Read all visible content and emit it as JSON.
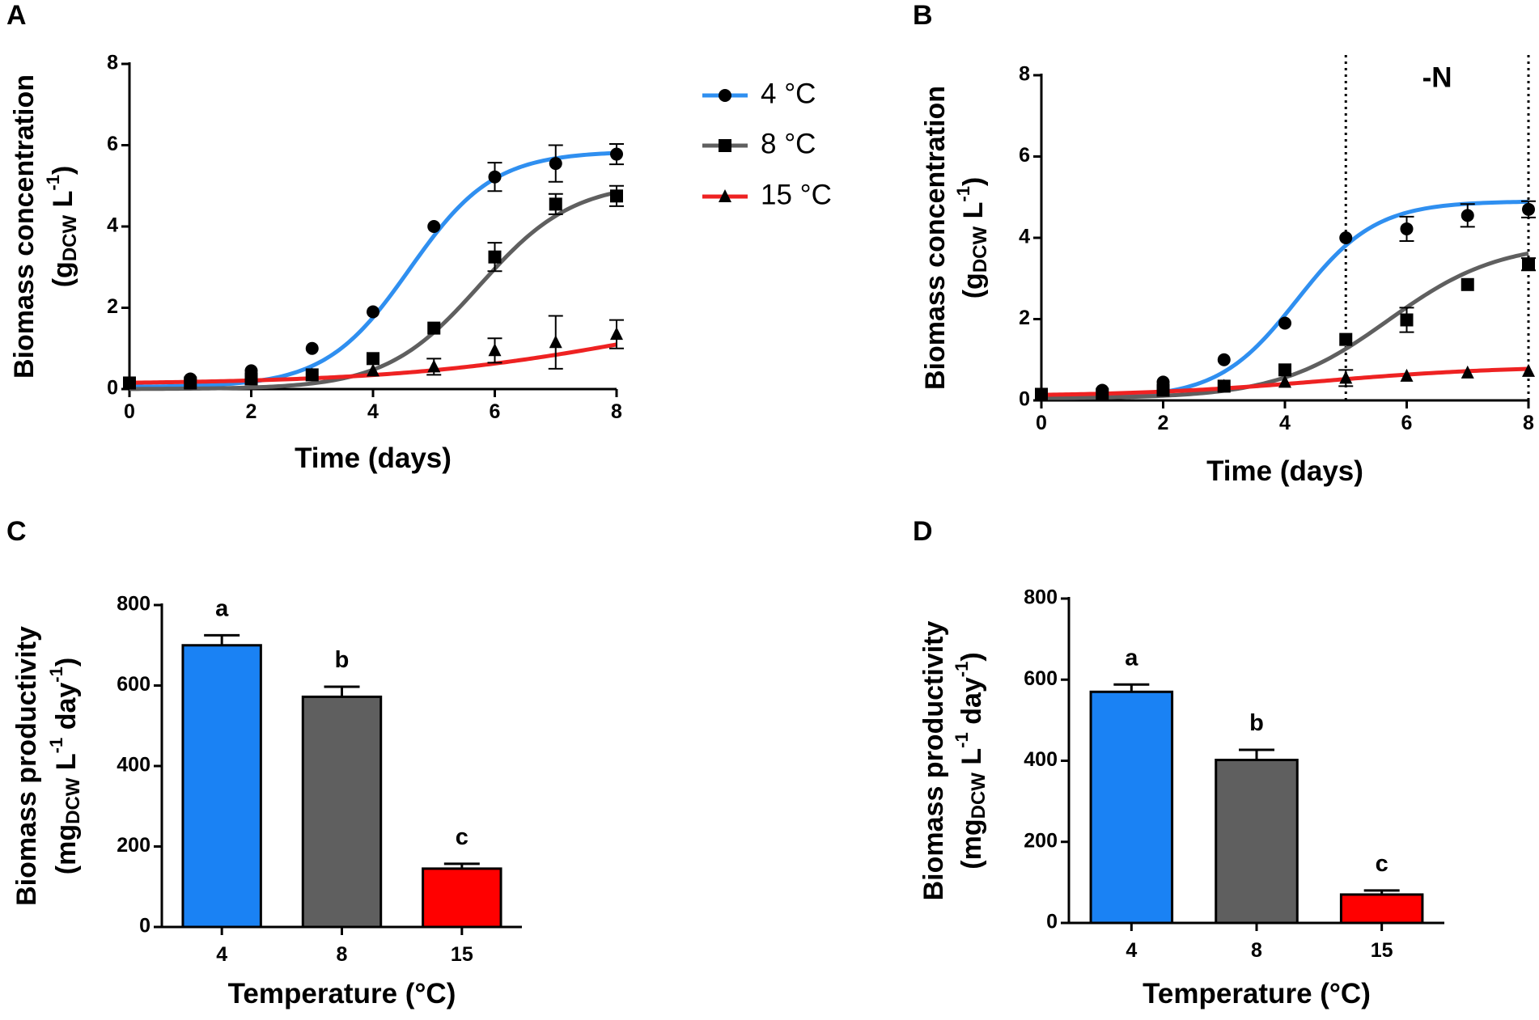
{
  "colors": {
    "4": "#1a82f4",
    "8": "#5f5f5f",
    "15": "#ff0000",
    "line4": "#2f8ff0",
    "line8": "#5f5f5f",
    "line15": "#ee2222",
    "axis": "#000000"
  },
  "legend": {
    "items": [
      {
        "label": "4 °C",
        "marker": "circle",
        "color_key": "line4"
      },
      {
        "label": "8 °C",
        "marker": "square",
        "color_key": "line8"
      },
      {
        "label": "15 °C",
        "marker": "triangle",
        "color_key": "line15"
      }
    ]
  },
  "chart_data": [
    {
      "id": "A",
      "panel_label": "A",
      "type": "scatter",
      "xlabel": "Time (days)",
      "ylabel_line1": "Biomass concentration",
      "ylabel_line2_prefix": "(g",
      "ylabel_sub": "DCW",
      "ylabel_mid": " L",
      "ylabel_sup": "-1",
      "ylabel_suffix": ")",
      "xlim": [
        0,
        8
      ],
      "ylim": [
        0,
        8
      ],
      "xticks": [
        0,
        2,
        4,
        6,
        8
      ],
      "yticks": [
        0,
        2,
        4,
        6,
        8
      ],
      "vlines": [],
      "annotation": null,
      "series": [
        {
          "name": "4 °C",
          "marker": "circle",
          "color_key": "line4",
          "x": [
            0,
            1,
            2,
            3,
            4,
            5,
            6,
            7,
            8
          ],
          "y": [
            0.15,
            0.25,
            0.45,
            1.0,
            1.9,
            4.0,
            5.22,
            5.55,
            5.78
          ],
          "err": [
            0,
            0,
            0,
            0,
            0,
            0,
            0.35,
            0.45,
            0.25
          ],
          "fit": {
            "min": 0.05,
            "max": 5.85,
            "x0": 4.6,
            "k": 1.45
          }
        },
        {
          "name": "8 °C",
          "marker": "square",
          "color_key": "line8",
          "x": [
            0,
            1,
            2,
            3,
            4,
            5,
            6,
            7,
            8
          ],
          "y": [
            0.15,
            0.15,
            0.25,
            0.35,
            0.75,
            1.5,
            3.25,
            4.55,
            4.75
          ],
          "err": [
            0,
            0,
            0,
            0,
            0,
            0,
            0.35,
            0.25,
            0.25
          ],
          "fit": {
            "min": 0.0,
            "max": 5.1,
            "x0": 5.75,
            "k": 1.3
          }
        },
        {
          "name": "15 °C",
          "marker": "triangle",
          "color_key": "line15",
          "x": [
            0,
            1,
            2,
            3,
            4,
            5,
            6,
            7,
            8
          ],
          "y": [
            0.15,
            0.15,
            0.25,
            0.35,
            0.45,
            0.55,
            0.95,
            1.15,
            1.35
          ],
          "err": [
            0,
            0,
            0,
            0,
            0,
            0.2,
            0.3,
            0.65,
            0.35
          ],
          "fit": {
            "min": 0.12,
            "max": 2.4,
            "x0": 8.6,
            "k": 0.48
          }
        }
      ]
    },
    {
      "id": "B",
      "panel_label": "B",
      "type": "scatter",
      "xlabel": "Time (days)",
      "ylabel_line1": "Biomass concentration",
      "ylabel_line2_prefix": "(g",
      "ylabel_sub": "DCW",
      "ylabel_mid": " L",
      "ylabel_sup": "-1",
      "ylabel_suffix": ")",
      "xlim": [
        0,
        8
      ],
      "ylim": [
        0,
        8
      ],
      "xticks": [
        0,
        2,
        4,
        6,
        8
      ],
      "yticks": [
        0,
        2,
        4,
        6,
        8
      ],
      "vlines": [
        5,
        8
      ],
      "annotation": {
        "text": "-N",
        "x": 6.5,
        "y": 7.9
      },
      "series": [
        {
          "name": "4 °C",
          "marker": "circle",
          "color_key": "line4",
          "x": [
            0,
            1,
            2,
            3,
            4,
            5,
            6,
            7,
            8
          ],
          "y": [
            0.15,
            0.25,
            0.45,
            1.0,
            1.9,
            4.0,
            4.22,
            4.55,
            4.7
          ],
          "err": [
            0,
            0,
            0,
            0,
            0,
            0,
            0.3,
            0.28,
            0.2
          ],
          "fit": {
            "min": 0.05,
            "max": 4.9,
            "x0": 4.2,
            "k": 1.55
          }
        },
        {
          "name": "8 °C",
          "marker": "square",
          "color_key": "line8",
          "x": [
            0,
            1,
            2,
            3,
            4,
            5,
            6,
            7,
            8
          ],
          "y": [
            0.15,
            0.15,
            0.25,
            0.35,
            0.75,
            1.5,
            1.98,
            2.85,
            3.35
          ],
          "err": [
            0,
            0,
            0,
            0,
            0,
            0,
            0.3,
            0,
            0.15
          ],
          "fit": {
            "min": 0.05,
            "max": 3.9,
            "x0": 5.7,
            "k": 1.1
          }
        },
        {
          "name": "15 °C",
          "marker": "triangle",
          "color_key": "line15",
          "x": [
            0,
            1,
            2,
            3,
            4,
            5,
            6,
            7,
            8
          ],
          "y": [
            0.15,
            0.15,
            0.25,
            0.35,
            0.45,
            0.55,
            0.6,
            0.68,
            0.72
          ],
          "err": [
            0,
            0,
            0,
            0,
            0,
            0.2,
            0,
            0,
            0
          ],
          "fit": {
            "min": 0.1,
            "max": 0.85,
            "x0": 4.6,
            "k": 0.65
          }
        }
      ]
    },
    {
      "id": "C",
      "panel_label": "C",
      "type": "bar",
      "xlabel": "Temperature (°C)",
      "ylabel_line1": "Biomass productivity",
      "ylabel_line2_prefix": "(mg",
      "ylabel_sub": "DCW",
      "ylabel_mid": " L",
      "ylabel_sup": "-1",
      "ylabel_mid2": " day",
      "ylabel_sup2": "-1",
      "ylabel_suffix": ")",
      "ylim": [
        0,
        800
      ],
      "yticks": [
        0,
        200,
        400,
        600,
        800
      ],
      "categories": [
        "4",
        "8",
        "15"
      ],
      "values": [
        700,
        572,
        145
      ],
      "errors": [
        25,
        25,
        12
      ],
      "sig_letters": [
        "a",
        "b",
        "c"
      ]
    },
    {
      "id": "D",
      "panel_label": "D",
      "type": "bar",
      "xlabel": "Temperature (°C)",
      "ylabel_line1": "Biomass productivity",
      "ylabel_line2_prefix": "(mg",
      "ylabel_sub": "DCW",
      "ylabel_mid": " L",
      "ylabel_sup": "-1",
      "ylabel_mid2": " day",
      "ylabel_sup2": "-1",
      "ylabel_suffix": ")",
      "ylim": [
        0,
        800
      ],
      "yticks": [
        0,
        200,
        400,
        600,
        800
      ],
      "categories": [
        "4",
        "8",
        "15"
      ],
      "values": [
        570,
        402,
        70
      ],
      "errors": [
        18,
        25,
        10
      ],
      "sig_letters": [
        "a",
        "b",
        "c"
      ]
    }
  ]
}
